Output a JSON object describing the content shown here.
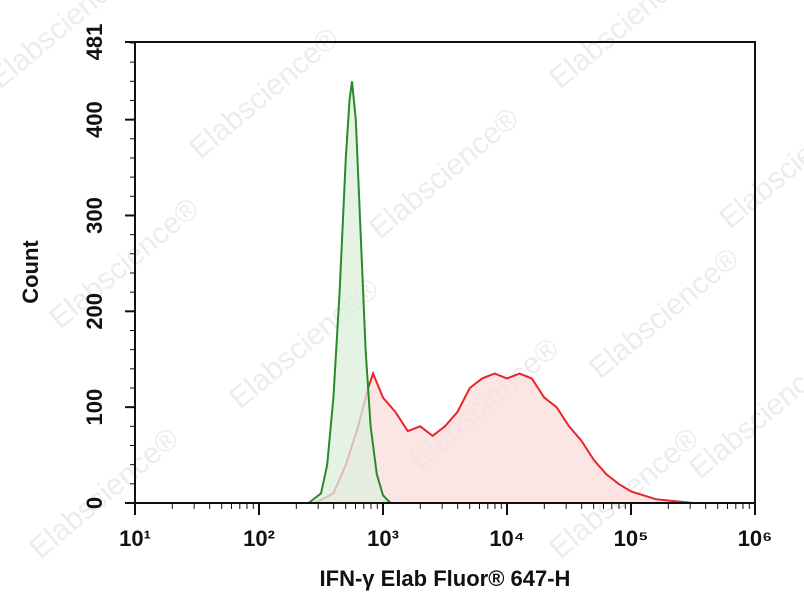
{
  "chart_data": {
    "type": "histogram-overlay",
    "xlabel": "IFN-γ Elab Fluor® 647-H",
    "ylabel": "Count",
    "watermark": "Elabscience®",
    "xscale": "log",
    "xlim": [
      10,
      1000000
    ],
    "xticks": [
      {
        "value": 10,
        "label": "10¹"
      },
      {
        "value": 100,
        "label": "10²"
      },
      {
        "value": 1000,
        "label": "10³"
      },
      {
        "value": 10000,
        "label": "10⁴"
      },
      {
        "value": 100000,
        "label": "10⁵"
      },
      {
        "value": 1000000,
        "label": "10⁶"
      }
    ],
    "ylim": [
      0,
      481
    ],
    "yticks": [
      0,
      100,
      200,
      300,
      400,
      481
    ],
    "series": [
      {
        "color": "#e8262a",
        "fill": "#fbdcdc",
        "x": [
          282,
          398,
          501,
          631,
          759,
          832,
          1000,
          1259,
          1585,
          1995,
          2512,
          3162,
          3981,
          5012,
          6310,
          7943,
          10000,
          12589,
          15849,
          19953,
          25119,
          31623,
          39811,
          50119,
          63096,
          79433,
          100000,
          125893,
          158489,
          223872,
          316228
        ],
        "values": [
          0,
          10,
          40,
          80,
          120,
          135,
          110,
          95,
          75,
          80,
          70,
          80,
          95,
          120,
          130,
          135,
          130,
          135,
          130,
          110,
          100,
          80,
          65,
          45,
          30,
          20,
          12,
          8,
          4,
          2,
          0
        ]
      },
      {
        "color": "#2a8a2a",
        "fill": "#dcefdc",
        "x": [
          251,
          316,
          355,
          398,
          447,
          501,
          537,
          562,
          603,
          661,
          724,
          794,
          891,
          1000,
          1148
        ],
        "values": [
          0,
          10,
          40,
          110,
          220,
          360,
          420,
          440,
          400,
          280,
          160,
          80,
          30,
          8,
          0
        ]
      }
    ]
  }
}
